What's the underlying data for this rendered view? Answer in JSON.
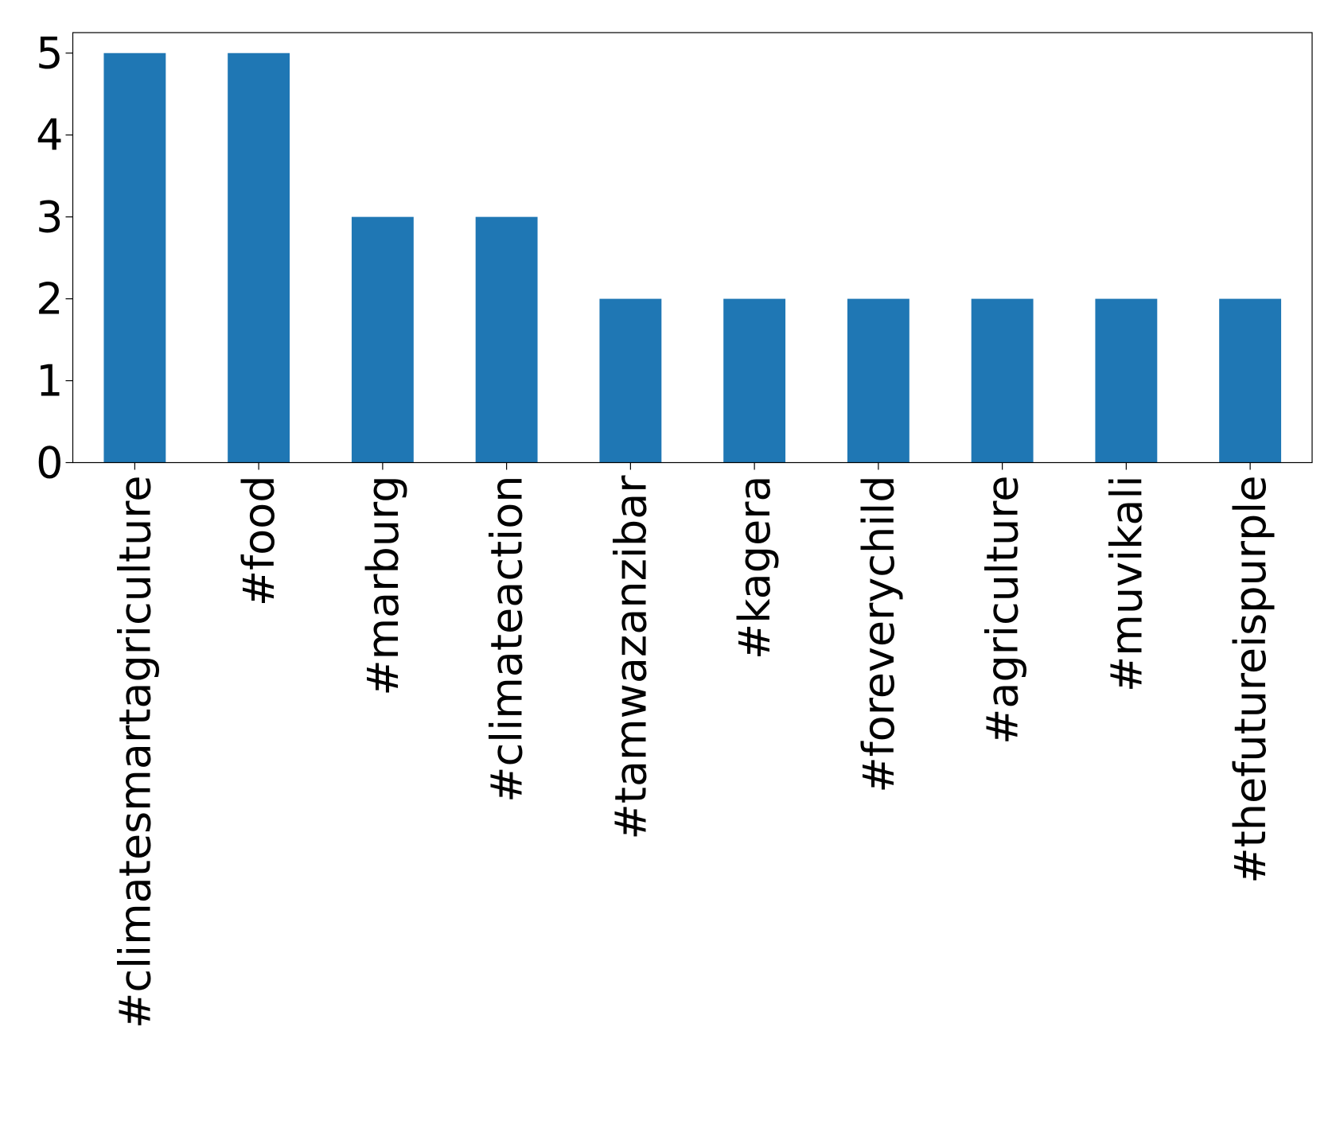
{
  "chart_data": {
    "type": "bar",
    "categories": [
      "#climatesmartagriculture",
      "#food",
      "#marburg",
      "#climateaction",
      "#tamwazanzibar",
      "#kagera",
      "#foreverychild",
      "#agriculture",
      "#muvikali",
      "#thefutureispurple"
    ],
    "values": [
      5,
      5,
      3,
      3,
      2,
      2,
      2,
      2,
      2,
      2
    ],
    "color": "#1f77b4",
    "ylim": [
      0,
      5.25
    ],
    "yticks": [
      0,
      1,
      2,
      3,
      4,
      5
    ],
    "grid": false
  }
}
